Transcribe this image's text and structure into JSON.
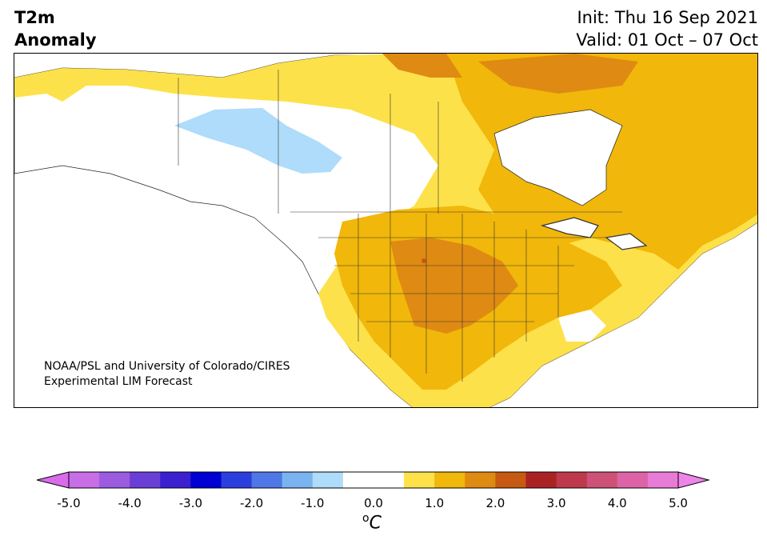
{
  "title": {
    "line1": "T2m",
    "line2": "Anomaly"
  },
  "dates": {
    "init": "Init: Thu 16 Sep 2021",
    "valid": "Valid: 01 Oct – 07 Oct"
  },
  "credit": {
    "line1": "NOAA/PSL and University of Colorado/CIRES",
    "line2": "Experimental LIM Forecast"
  },
  "colorbar": {
    "ticks": [
      "-5.0",
      "-4.0",
      "-3.0",
      "-2.0",
      "-1.0",
      "0.0",
      "1.0",
      "2.0",
      "3.0",
      "4.0",
      "5.0"
    ],
    "unit_superscript": "o",
    "unit_symbol": "C",
    "min": -5.0,
    "max": 5.0,
    "step": 0.5,
    "colors": [
      "#c86ee6",
      "#9b5ce0",
      "#6a3fd6",
      "#3a20d0",
      "#0000d2",
      "#2a3fdc",
      "#4f78e6",
      "#7ab4f0",
      "#aedcfa",
      "#ffffff",
      "#ffffff",
      "#fde14a",
      "#f1b70a",
      "#df8a12",
      "#c65a14",
      "#aa2222",
      "#bc3a4c",
      "#cc5278",
      "#dc64a6",
      "#e77bd6"
    ],
    "under_color": "#d86cea",
    "over_color": "#ee84e8"
  },
  "map_colors": {
    "ocean": "#ffffff",
    "anom_0_5_1": "#fde14a",
    "anom_1_1_5": "#f1b70a",
    "anom_1_5_2": "#df8a12",
    "anom_2_2_5": "#c65a14",
    "anom_neg": "#aedcfa"
  }
}
